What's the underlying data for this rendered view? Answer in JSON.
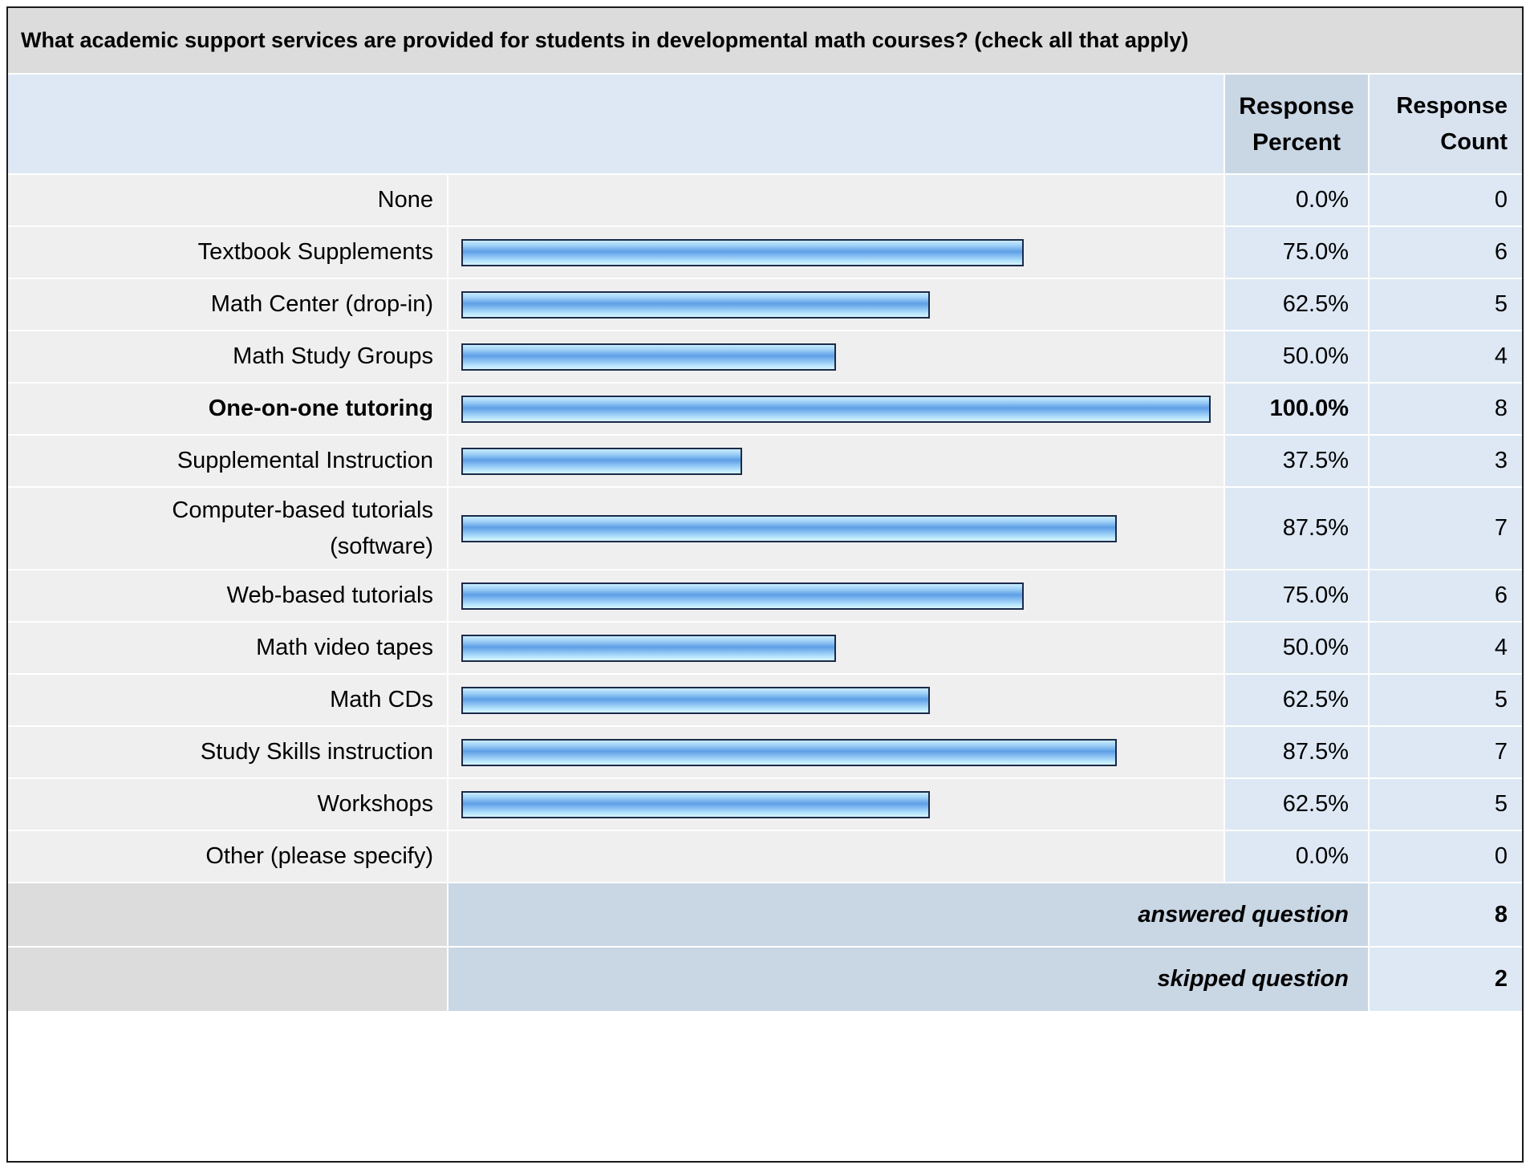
{
  "title": "What academic support services are provided for students in developmental math courses? (check all that apply)",
  "headers": {
    "percent_line1": "Response",
    "percent_line2": "Percent",
    "count_line1": "Response",
    "count_line2": "Count"
  },
  "chart_data": {
    "type": "bar",
    "title": "What academic support services are provided for students in developmental math courses? (check all that apply)",
    "categories": [
      "None",
      "Textbook Supplements",
      "Math Center (drop-in)",
      "Math Study Groups",
      "One-on-one tutoring",
      "Supplemental Instruction",
      "Computer-based tutorials (software)",
      "Web-based tutorials",
      "Math video tapes",
      "Math CDs",
      "Study Skills instruction",
      "Workshops",
      "Other (please specify)"
    ],
    "series": [
      {
        "name": "Response Percent",
        "values": [
          0.0,
          75.0,
          62.5,
          50.0,
          100.0,
          37.5,
          87.5,
          75.0,
          50.0,
          62.5,
          87.5,
          62.5,
          0.0
        ]
      },
      {
        "name": "Response Count",
        "values": [
          0,
          6,
          5,
          4,
          8,
          3,
          7,
          6,
          4,
          5,
          7,
          5,
          0
        ]
      }
    ],
    "xlim": [
      0,
      100
    ],
    "orientation": "horizontal",
    "bar_color": "#7fb8f0"
  },
  "rows": [
    {
      "label": "None",
      "label2": "",
      "percent_text": "0.0%",
      "count_text": "0",
      "bold": false
    },
    {
      "label": "Textbook Supplements",
      "label2": "",
      "percent_text": "75.0%",
      "count_text": "6",
      "bold": false
    },
    {
      "label": "Math Center (drop-in)",
      "label2": "",
      "percent_text": "62.5%",
      "count_text": "5",
      "bold": false
    },
    {
      "label": "Math Study Groups",
      "label2": "",
      "percent_text": "50.0%",
      "count_text": "4",
      "bold": false
    },
    {
      "label": "One-on-one tutoring",
      "label2": "",
      "percent_text": "100.0%",
      "count_text": "8",
      "bold": true
    },
    {
      "label": "Supplemental Instruction",
      "label2": "",
      "percent_text": "37.5%",
      "count_text": "3",
      "bold": false
    },
    {
      "label": "Computer-based tutorials",
      "label2": "(software)",
      "percent_text": "87.5%",
      "count_text": "7",
      "bold": false
    },
    {
      "label": "Web-based tutorials",
      "label2": "",
      "percent_text": "75.0%",
      "count_text": "6",
      "bold": false
    },
    {
      "label": "Math video tapes",
      "label2": "",
      "percent_text": "50.0%",
      "count_text": "4",
      "bold": false
    },
    {
      "label": "Math CDs",
      "label2": "",
      "percent_text": "62.5%",
      "count_text": "5",
      "bold": false
    },
    {
      "label": "Study Skills instruction",
      "label2": "",
      "percent_text": "87.5%",
      "count_text": "7",
      "bold": false
    },
    {
      "label": "Workshops",
      "label2": "",
      "percent_text": "62.5%",
      "count_text": "5",
      "bold": false
    },
    {
      "label": "Other (please specify)",
      "label2": "",
      "percent_text": "0.0%",
      "count_text": "0",
      "bold": false
    }
  ],
  "footer": {
    "answered_label": "answered question",
    "answered_value": "8",
    "skipped_label": "skipped question",
    "skipped_value": "2"
  }
}
